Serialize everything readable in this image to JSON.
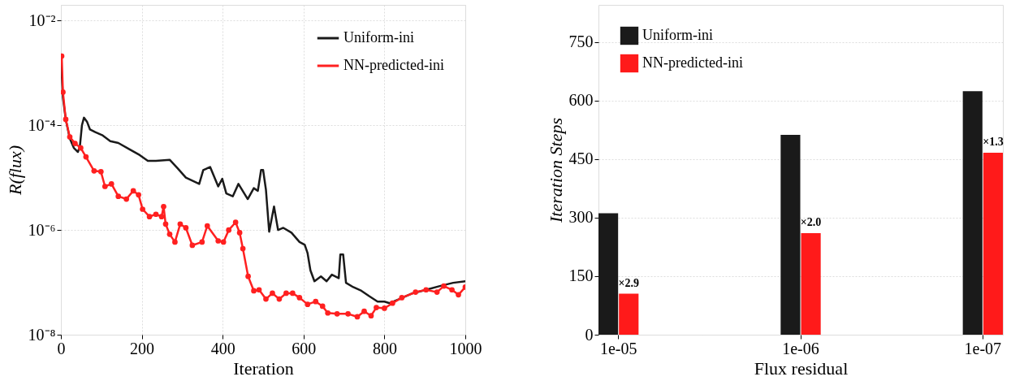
{
  "chart_data": [
    {
      "type": "line",
      "xlabel": "Iteration",
      "ylabel": "R(flux)",
      "log": "y",
      "grid": true,
      "legend": "top right",
      "line_style": "solid",
      "xlim": [
        0,
        1000
      ],
      "xticks": [
        0,
        200,
        400,
        600,
        800,
        1000
      ],
      "ylim": [
        1e-08,
        0.02
      ],
      "yticks": [
        {
          "value": 0.01,
          "label": "10⁻²"
        },
        {
          "value": 0.0001,
          "label": "10⁻⁴"
        },
        {
          "value": 1e-06,
          "label": "10⁻⁶"
        },
        {
          "value": 1e-08,
          "label": "10⁻⁸"
        }
      ],
      "series": [
        {
          "name": "Uniform-ini",
          "color": "#1a1a1a",
          "marker": "none",
          "x": [
            0,
            5,
            12,
            22,
            32,
            42,
            47,
            52,
            57,
            65,
            72,
            85,
            102,
            122,
            142,
            169,
            195,
            215,
            235,
            269,
            289,
            309,
            342,
            352,
            369,
            389,
            399,
            409,
            425,
            439,
            462,
            477,
            487,
            495,
            500,
            507,
            515,
            527,
            537,
            550,
            570,
            590,
            603,
            610,
            617,
            627,
            643,
            657,
            670,
            687,
            691,
            698,
            705,
            723,
            743,
            763,
            783,
            800,
            813,
            837,
            870,
            903,
            937,
            970,
            1000
          ],
          "values": [
            0.002,
            0.00034,
            0.00013,
            5.6e-05,
            3.7e-05,
            3.1e-05,
            4e-05,
            0.0001,
            0.00014,
            0.000115,
            8.3e-05,
            7.4e-05,
            6.5e-05,
            5e-05,
            4.6e-05,
            3.5e-05,
            2.7e-05,
            2.1e-05,
            2.1e-05,
            2.2e-05,
            1.5e-05,
            1e-05,
            7.6e-06,
            1.4e-05,
            1.6e-05,
            6.8e-06,
            9.5e-06,
            5e-06,
            4.4e-06,
            7.6e-06,
            3.9e-06,
            6.3e-06,
            5.6e-06,
            1.4e-05,
            1.4e-05,
            5.9e-06,
            9.3e-07,
            2.8e-06,
            1e-06,
            1.1e-06,
            8.9e-07,
            5.9e-07,
            5.2e-07,
            3.6e-07,
            1.7e-07,
            1.05e-07,
            1.3e-07,
            1.05e-07,
            1.4e-07,
            1.2e-07,
            3.4e-07,
            3.4e-07,
            9.8e-08,
            8.1e-08,
            6.9e-08,
            5.4e-08,
            4.3e-08,
            4.3e-08,
            4e-08,
            4.8e-08,
            6.2e-08,
            7.2e-08,
            8.5e-08,
            9.8e-08,
            1.05e-07
          ]
        },
        {
          "name": "NN-predicted-ini",
          "color": "#ff2020",
          "marker": "circle",
          "x": [
            2,
            5,
            12,
            22,
            35,
            49,
            62,
            82,
            99,
            109,
            125,
            142,
            162,
            179,
            192,
            202,
            219,
            235,
            249,
            254,
            259,
            269,
            282,
            295,
            309,
            325,
            349,
            362,
            389,
            402,
            415,
            432,
            442,
            450,
            463,
            477,
            490,
            507,
            523,
            540,
            557,
            573,
            590,
            610,
            630,
            647,
            660,
            683,
            710,
            733,
            750,
            767,
            780,
            800,
            820,
            843,
            877,
            903,
            930,
            947,
            967,
            983,
            1000
          ],
          "values": [
            0.0021,
            0.00043,
            0.00013,
            6e-05,
            4.5e-05,
            3.7e-05,
            2.5e-05,
            1.35e-05,
            1.3e-05,
            6.8e-06,
            7.6e-06,
            4.4e-06,
            3.9e-06,
            5.6e-06,
            4.7e-06,
            2.5e-06,
            1.8e-06,
            2e-06,
            1.8e-06,
            2.8e-06,
            1.3e-06,
            8.3e-07,
            5.9e-07,
            1.3e-06,
            1.1e-06,
            5.1e-07,
            5.9e-07,
            1.2e-06,
            6.2e-07,
            5.9e-07,
            1e-06,
            1.4e-06,
            8.9e-07,
            4.4e-07,
            1.3e-07,
            6.9e-08,
            7.2e-08,
            4.8e-08,
            6.2e-08,
            4.8e-08,
            6.2e-08,
            6.2e-08,
            5.1e-08,
            3.8e-08,
            4.3e-08,
            3.5e-08,
            2.6e-08,
            2.5e-08,
            2.5e-08,
            2.2e-08,
            2.8e-08,
            2.3e-08,
            3.3e-08,
            3.2e-08,
            4e-08,
            5.1e-08,
            6.5e-08,
            7.2e-08,
            6.5e-08,
            8.5e-08,
            7.2e-08,
            5.8e-08,
            8.1e-08
          ]
        }
      ]
    },
    {
      "type": "bar",
      "xlabel": "Flux residual",
      "ylabel": "Iteration Steps",
      "grid": "y",
      "legend": "top left",
      "categories": [
        "1e-05",
        "1e-06",
        "1e-07"
      ],
      "ylim": [
        0,
        845
      ],
      "yticks": [
        0,
        150,
        300,
        450,
        600,
        750
      ],
      "series": [
        {
          "name": "Uniform-ini",
          "color": "#1a1a1a",
          "values": [
            311,
            512,
            624
          ]
        },
        {
          "name": "NN-predicted-ini",
          "color": "#ff1a1a",
          "values": [
            105,
            260,
            466
          ]
        }
      ],
      "annotations": [
        {
          "text": "×2.9",
          "x": "1e-05",
          "y": 105
        },
        {
          "text": "×2.0",
          "x": "1e-06",
          "y": 260
        },
        {
          "text": "×1.3",
          "x": "1e-07",
          "y": 466
        }
      ]
    }
  ]
}
